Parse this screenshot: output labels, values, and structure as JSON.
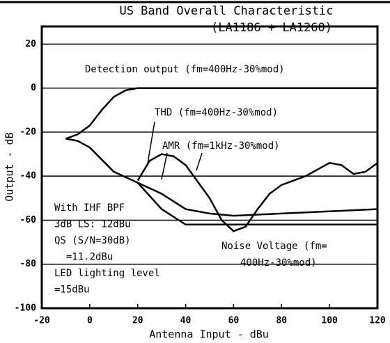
{
  "chart_data": {
    "type": "line",
    "title": "US Band Overall Characteristic",
    "subtitle": "(LA1186 + LA1260)",
    "x_label": "Antenna Input - dBu",
    "y_label": "Output - dB",
    "xlim": [
      -20,
      120
    ],
    "ylim": [
      -100,
      28
    ],
    "xticks": [
      -20,
      0,
      20,
      40,
      60,
      80,
      100,
      120
    ],
    "yticks": [
      -100,
      -80,
      -60,
      -40,
      -20,
      0,
      20
    ],
    "grid": true,
    "series": [
      {
        "labels": [
          "Detection output (fm=400Hz-30%mod)"
        ],
        "color": "#000",
        "x": [
          -10,
          -5,
          0,
          5,
          10,
          15,
          20,
          40,
          80,
          120
        ],
        "values": [
          -23,
          -21,
          -17,
          -10,
          -4,
          -1,
          0,
          0,
          0,
          0
        ]
      },
      {
        "labels": [
          "THD (fm=400Hz-30%mod)"
        ],
        "color": "#000",
        "x": [
          -10,
          -5,
          0,
          10,
          20,
          30,
          40,
          50,
          60,
          80,
          100,
          120
        ],
        "values": [
          -23,
          -24,
          -27,
          -38,
          -43,
          -48,
          -55,
          -57,
          -58,
          -57,
          -56,
          -55
        ]
      },
      {
        "labels": [
          "AMR (fm=1kHz-30%mod)"
        ],
        "color": "#000",
        "x": [
          20,
          25,
          30,
          35,
          40,
          50,
          55,
          60,
          65,
          70,
          75,
          80,
          90,
          100,
          105,
          110,
          115,
          120
        ],
        "values": [
          -42,
          -33,
          -30,
          -31,
          -35,
          -50,
          -60,
          -65,
          -63,
          -55,
          -48,
          -44,
          -40,
          -34,
          -35,
          -39,
          -38,
          -34
        ]
      },
      {
        "labels": [
          "Noise Voltage (fm=",
          "400Hz-30%mod)"
        ],
        "color": "#000",
        "x": [
          20,
          30,
          40,
          60,
          80,
          100,
          120
        ],
        "values": [
          -43,
          -55,
          -62,
          -62,
          -62,
          -62,
          -62
        ]
      }
    ],
    "notes": [
      "With IHF BPF",
      "3dB LS: 12dBu",
      "QS (S/N=30dB)",
      "  =11.2dBu",
      "LED lighting level",
      "=15dBu"
    ]
  }
}
